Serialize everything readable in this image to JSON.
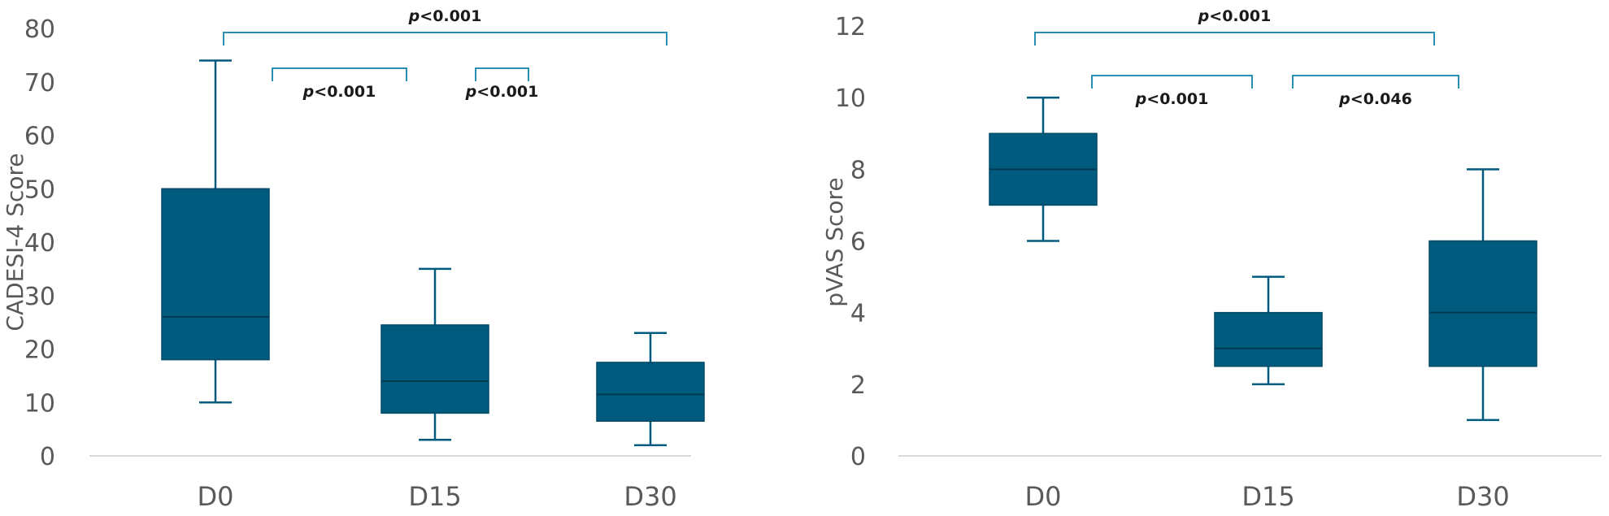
{
  "chart_data": [
    {
      "type": "boxplot",
      "ylabel": "CADESI-4 Score",
      "ylim": [
        0,
        80
      ],
      "yticks": [
        "0",
        "10",
        "20",
        "30",
        "40",
        "50",
        "60",
        "70",
        "80"
      ],
      "categories": [
        "D0",
        "D15",
        "D30"
      ],
      "boxes": [
        {
          "min": 10,
          "q1": 18,
          "median": 26,
          "q3": 50,
          "max": 74
        },
        {
          "min": 3,
          "q1": 8,
          "median": 14,
          "q3": 24.5,
          "max": 35
        },
        {
          "min": 2,
          "q1": 6.5,
          "median": 11.5,
          "q3": 17.5,
          "max": 23
        }
      ],
      "comparisons": [
        {
          "from": 0,
          "to": 2,
          "italic": "p",
          "rest": "<0.001",
          "level": 0
        },
        {
          "from": 0.4,
          "to": 1,
          "italic": "p",
          "rest": "<0.001",
          "level": 1
        },
        {
          "from": 1.3,
          "to": 2,
          "italic": "p",
          "rest": "<0.001",
          "level": 1
        }
      ]
    },
    {
      "type": "boxplot",
      "ylabel": "pVAS Score",
      "ylim": [
        0,
        12
      ],
      "yticks": [
        "0",
        "2",
        "4",
        "6",
        "8",
        "10",
        "12"
      ],
      "categories": [
        "D0",
        "D15",
        "D30"
      ],
      "boxes": [
        {
          "min": 6,
          "q1": 7,
          "median": 8,
          "q3": 9,
          "max": 10
        },
        {
          "min": 2,
          "q1": 2.5,
          "median": 3,
          "q3": 4,
          "max": 5
        },
        {
          "min": 1,
          "q1": 2.5,
          "median": 4,
          "q3": 6,
          "max": 8
        }
      ],
      "comparisons": [
        {
          "from": 0,
          "to": 2,
          "italic": "p",
          "rest": "<0.001",
          "level": 0
        },
        {
          "from": 0.35,
          "to": 1,
          "italic": "p",
          "rest": "<0.001",
          "level": 1
        },
        {
          "from": 1.05,
          "to": 1.9,
          "italic": "p",
          "rest": "<0.046",
          "level": 1
        }
      ]
    }
  ]
}
